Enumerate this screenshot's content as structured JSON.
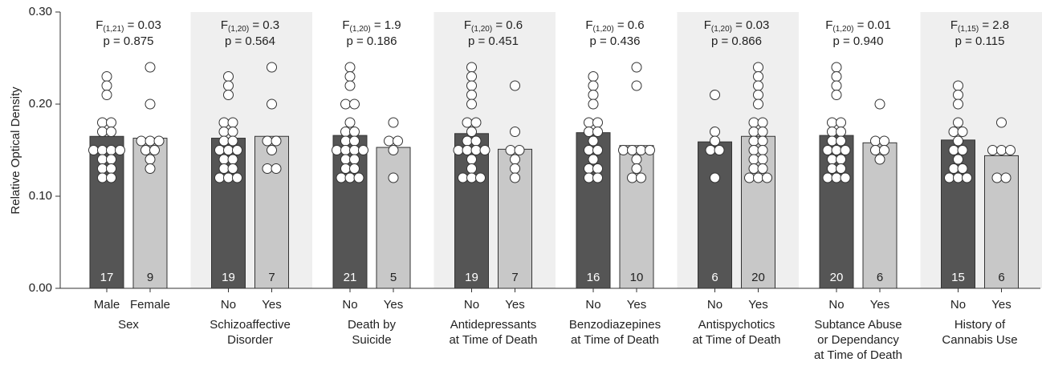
{
  "chart_data": {
    "type": "bar",
    "y_label": "Relative Optical Density",
    "ylim": [
      0,
      0.3
    ],
    "yticks": [
      {
        "value": 0,
        "label": "0.00"
      },
      {
        "value": 0.1,
        "label": "0.10"
      },
      {
        "value": 0.2,
        "label": "0.20"
      },
      {
        "value": 0.3,
        "label": "0.30"
      }
    ],
    "colors": [
      "#555555",
      "#c8c8c8"
    ],
    "shade_color": "#efefef",
    "groups": [
      {
        "label_lines": [
          "Sex"
        ],
        "categories": [
          "Male",
          "Female"
        ],
        "values": [
          0.165,
          0.163
        ],
        "n": [
          17,
          9
        ],
        "points": [
          [
            0.23,
            0.22,
            0.21,
            0.18,
            0.18,
            0.17,
            0.17,
            0.15,
            0.15,
            0.15,
            0.15,
            0.14,
            0.14,
            0.13,
            0.13,
            0.12,
            0.12
          ],
          [
            0.24,
            0.2,
            0.16,
            0.16,
            0.16,
            0.15,
            0.15,
            0.14,
            0.13
          ]
        ],
        "stat": {
          "f_symbol": "F",
          "f_df": "(1,21)",
          "f_value": " = 0.03",
          "p": "p = 0.875"
        },
        "shaded": false
      },
      {
        "label_lines": [
          "Schizoaffective",
          "Disorder"
        ],
        "categories": [
          "No",
          "Yes"
        ],
        "values": [
          0.163,
          0.165
        ],
        "n": [
          19,
          7
        ],
        "points": [
          [
            0.23,
            0.22,
            0.21,
            0.18,
            0.18,
            0.17,
            0.17,
            0.16,
            0.16,
            0.15,
            0.15,
            0.15,
            0.14,
            0.14,
            0.13,
            0.13,
            0.12,
            0.12,
            0.12
          ],
          [
            0.24,
            0.2,
            0.16,
            0.16,
            0.15,
            0.13,
            0.13
          ]
        ],
        "stat": {
          "f_symbol": "F",
          "f_df": "(1,20)",
          "f_value": " = 0.3",
          "p": "p = 0.564"
        },
        "shaded": true
      },
      {
        "label_lines": [
          "Death by",
          "Suicide"
        ],
        "categories": [
          "No",
          "Yes"
        ],
        "values": [
          0.166,
          0.153
        ],
        "n": [
          21,
          5
        ],
        "points": [
          [
            0.24,
            0.23,
            0.22,
            0.2,
            0.2,
            0.18,
            0.17,
            0.17,
            0.16,
            0.16,
            0.15,
            0.15,
            0.15,
            0.15,
            0.14,
            0.14,
            0.13,
            0.13,
            0.12,
            0.12,
            0.12
          ],
          [
            0.18,
            0.16,
            0.16,
            0.15,
            0.12
          ]
        ],
        "stat": {
          "f_symbol": "F",
          "f_df": "(1,20)",
          "f_value": " = 1.9",
          "p": "p = 0.186"
        },
        "shaded": false
      },
      {
        "label_lines": [
          "Antidepressants",
          "at Time of Death"
        ],
        "categories": [
          "No",
          "Yes"
        ],
        "values": [
          0.168,
          0.151
        ],
        "n": [
          19,
          7
        ],
        "points": [
          [
            0.24,
            0.23,
            0.22,
            0.21,
            0.2,
            0.18,
            0.18,
            0.17,
            0.16,
            0.16,
            0.15,
            0.15,
            0.15,
            0.15,
            0.14,
            0.13,
            0.12,
            0.12,
            0.12
          ],
          [
            0.22,
            0.17,
            0.15,
            0.15,
            0.14,
            0.13,
            0.12
          ]
        ],
        "stat": {
          "f_symbol": "F",
          "f_df": "(1,20)",
          "f_value": " = 0.6",
          "p": "p = 0.451"
        },
        "shaded": true
      },
      {
        "label_lines": [
          "Benzodiazepines",
          "at Time of Death"
        ],
        "categories": [
          "No",
          "Yes"
        ],
        "values": [
          0.169,
          0.155
        ],
        "n": [
          16,
          10
        ],
        "points": [
          [
            0.23,
            0.22,
            0.21,
            0.2,
            0.18,
            0.18,
            0.17,
            0.17,
            0.16,
            0.15,
            0.15,
            0.14,
            0.13,
            0.13,
            0.12,
            0.12
          ],
          [
            0.24,
            0.22,
            0.15,
            0.15,
            0.15,
            0.15,
            0.14,
            0.13,
            0.12,
            0.12
          ]
        ],
        "stat": {
          "f_symbol": "F",
          "f_df": "(1,20)",
          "f_value": " = 0.6",
          "p": "p = 0.436"
        },
        "shaded": false
      },
      {
        "label_lines": [
          "Antispychotics",
          "at Time of Death"
        ],
        "categories": [
          "No",
          "Yes"
        ],
        "values": [
          0.159,
          0.165
        ],
        "n": [
          6,
          20
        ],
        "points": [
          [
            0.21,
            0.17,
            0.16,
            0.15,
            0.15,
            0.12
          ],
          [
            0.24,
            0.23,
            0.22,
            0.21,
            0.2,
            0.18,
            0.18,
            0.17,
            0.17,
            0.16,
            0.16,
            0.15,
            0.15,
            0.14,
            0.14,
            0.13,
            0.13,
            0.12,
            0.12,
            0.12
          ]
        ],
        "stat": {
          "f_symbol": "F",
          "f_df": "(1,20)",
          "f_value": " = 0.03",
          "p": "p = 0.866"
        },
        "shaded": true
      },
      {
        "label_lines": [
          "Subtance Abuse",
          "or Dependancy",
          "at Time of Death"
        ],
        "categories": [
          "No",
          "Yes"
        ],
        "values": [
          0.166,
          0.158
        ],
        "n": [
          20,
          6
        ],
        "points": [
          [
            0.24,
            0.23,
            0.22,
            0.21,
            0.18,
            0.18,
            0.17,
            0.17,
            0.16,
            0.16,
            0.15,
            0.15,
            0.15,
            0.14,
            0.14,
            0.13,
            0.13,
            0.12,
            0.12,
            0.12
          ],
          [
            0.2,
            0.16,
            0.16,
            0.15,
            0.15,
            0.14
          ]
        ],
        "stat": {
          "f_symbol": "F",
          "f_df": "(1,20)",
          "f_value": " = 0.01",
          "p": "p = 0.940"
        },
        "shaded": false
      },
      {
        "label_lines": [
          "History of",
          "Cannabis Use"
        ],
        "categories": [
          "No",
          "Yes"
        ],
        "values": [
          0.161,
          0.144
        ],
        "n": [
          15,
          6
        ],
        "points": [
          [
            0.22,
            0.21,
            0.2,
            0.18,
            0.17,
            0.17,
            0.16,
            0.15,
            0.15,
            0.14,
            0.13,
            0.13,
            0.12,
            0.12,
            0.12
          ],
          [
            0.18,
            0.15,
            0.15,
            0.15,
            0.12,
            0.12
          ]
        ],
        "stat": {
          "f_symbol": "F",
          "f_df": "(1,15)",
          "f_value": " = 2.8",
          "p": "p = 0.115"
        },
        "shaded": true
      }
    ]
  }
}
